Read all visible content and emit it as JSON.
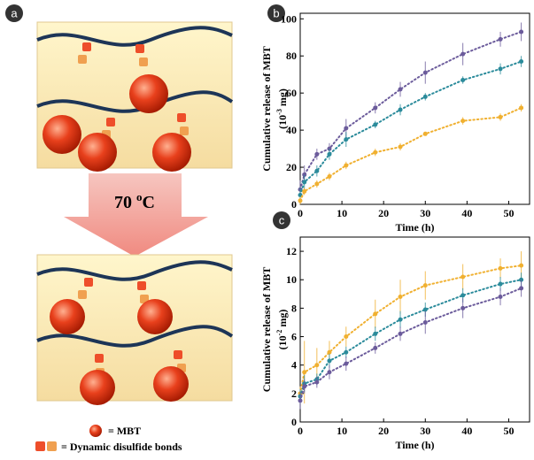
{
  "panel_labels": [
    "a",
    "b",
    "c"
  ],
  "schematic": {
    "temperature": {
      "value": "70",
      "sup": "o",
      "unit": "C"
    },
    "legend": [
      "= MBT",
      "= Dynamic disulfide bonds"
    ]
  },
  "chart_data": [
    {
      "type": "line",
      "x_label": "Time (h)",
      "y_label": {
        "line1": "Cumulative release of MBT",
        "before": "(10",
        "sup": "-3",
        "after": " mg)"
      },
      "x": [
        0,
        1,
        4,
        7,
        11,
        18,
        24,
        30,
        39,
        48,
        53
      ],
      "xlim": [
        0,
        55
      ],
      "xticks": [
        0,
        10,
        20,
        30,
        40,
        50
      ],
      "ylim": [
        0,
        103
      ],
      "yticks": [
        0,
        20,
        40,
        60,
        80,
        100
      ],
      "series": [
        {
          "color": "#6b5b9b",
          "values": [
            8,
            16,
            27,
            30,
            41,
            52,
            62,
            71,
            81,
            89,
            93
          ],
          "errors": [
            5,
            5,
            3,
            3,
            5,
            3,
            4,
            6,
            6,
            4,
            5
          ]
        },
        {
          "color": "#2b8b9b",
          "values": [
            5,
            12,
            18,
            27,
            35,
            43,
            51,
            58,
            67,
            73,
            77
          ],
          "errors": [
            4,
            4,
            3,
            3,
            4,
            2,
            3,
            2,
            2,
            3,
            3
          ]
        },
        {
          "color": "#f0b030",
          "values": [
            2,
            7,
            11,
            15,
            21,
            28,
            31,
            38,
            45,
            47,
            52
          ],
          "errors": [
            2,
            2,
            2,
            2,
            2,
            2,
            2,
            1,
            2,
            2,
            2
          ]
        }
      ]
    },
    {
      "type": "line",
      "x_label": "Time (h)",
      "y_label": {
        "line1": "Cumulative release of MBT",
        "before": "(10",
        "sup": "-2",
        "after": " mg)"
      },
      "x": [
        0,
        1,
        4,
        7,
        11,
        18,
        24,
        30,
        39,
        48,
        53
      ],
      "xlim": [
        0,
        55
      ],
      "xticks": [
        0,
        10,
        20,
        30,
        40,
        50
      ],
      "ylim": [
        0,
        13
      ],
      "yticks": [
        0,
        2,
        4,
        6,
        8,
        10,
        12
      ],
      "series": [
        {
          "color": "#f0b030",
          "values": [
            2,
            3.5,
            4,
            4.9,
            6,
            7.6,
            8.8,
            9.6,
            10.2,
            10.8,
            11
          ],
          "errors": [
            0.5,
            2.2,
            1.2,
            0.8,
            0.7,
            1,
            1.2,
            1,
            0.9,
            0.7,
            1
          ]
        },
        {
          "color": "#2b8b9b",
          "values": [
            1.8,
            2.7,
            3,
            4.3,
            4.9,
            6.2,
            7.2,
            7.9,
            8.9,
            9.7,
            10
          ],
          "errors": [
            0.5,
            0.6,
            0.4,
            0.5,
            0.4,
            0.5,
            0.6,
            0.5,
            0.5,
            0.5,
            0.5
          ]
        },
        {
          "color": "#6b5b9b",
          "values": [
            1.5,
            2.5,
            2.8,
            3.5,
            4.1,
            5.2,
            6.2,
            7,
            8,
            8.8,
            9.4
          ],
          "errors": [
            0.6,
            0.5,
            0.4,
            0.5,
            0.5,
            0.4,
            0.5,
            0.8,
            0.7,
            0.6,
            0.6
          ]
        }
      ]
    }
  ]
}
